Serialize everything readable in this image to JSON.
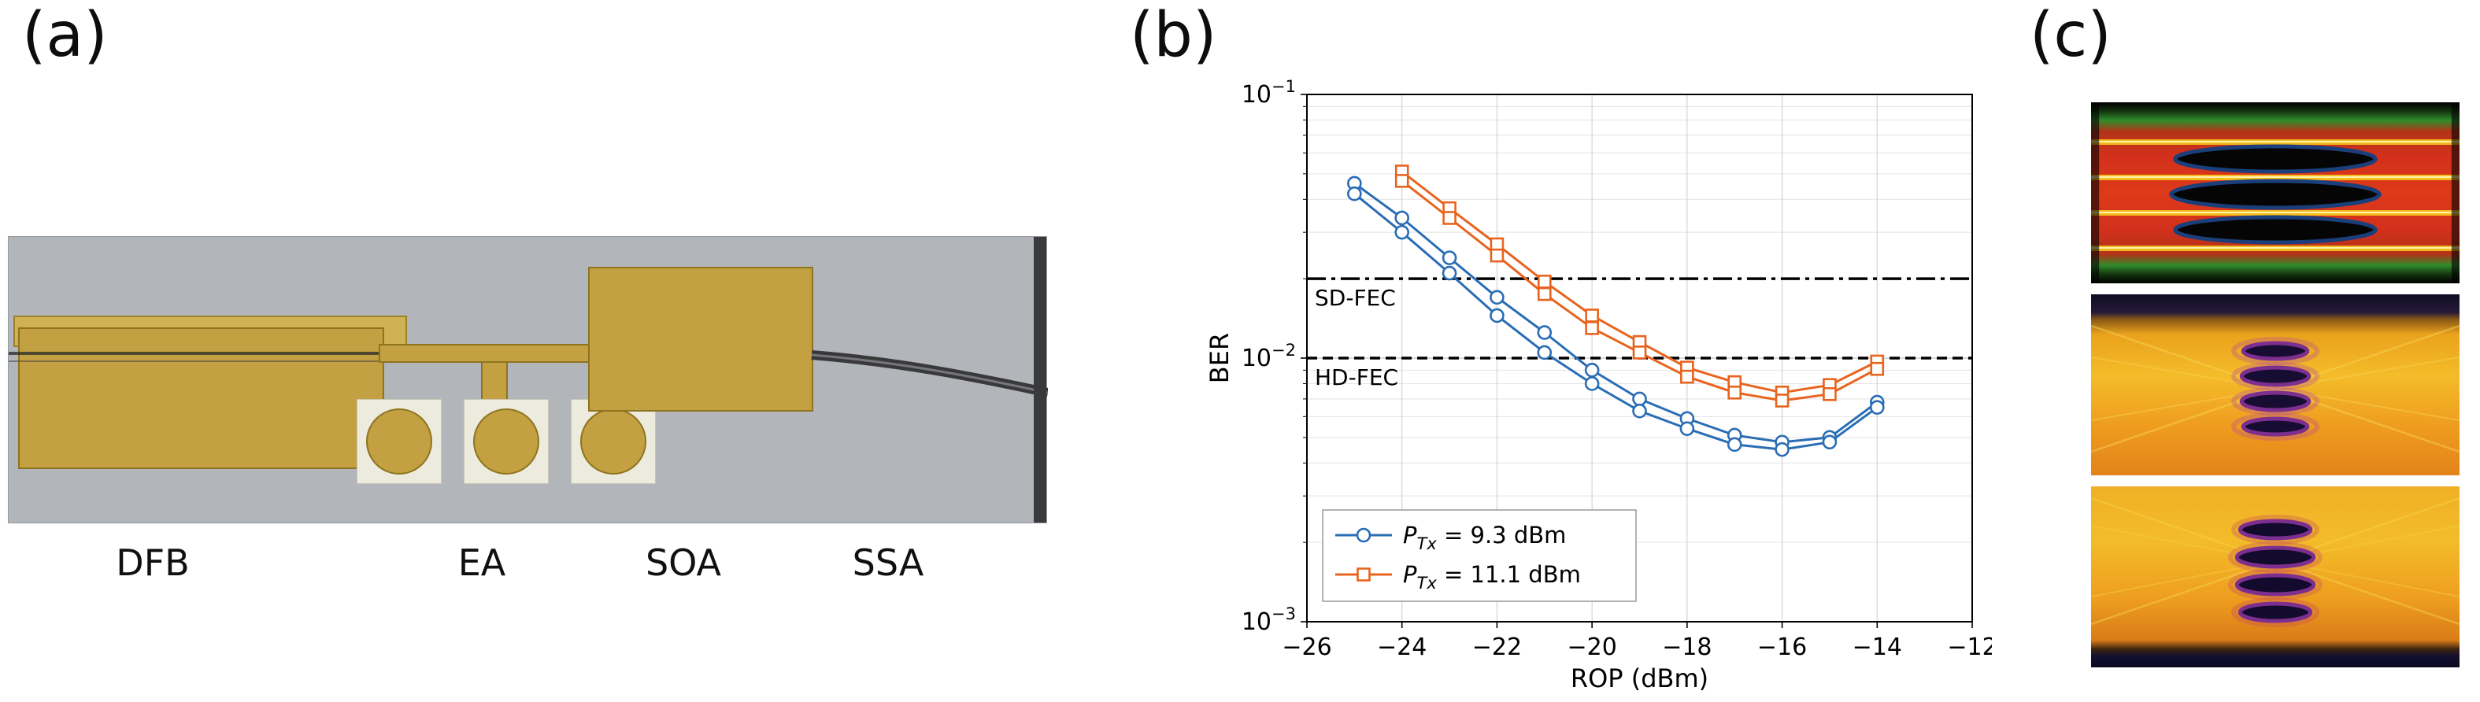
{
  "panel_a": {
    "label": "(a)",
    "component_labels": [
      "DFB",
      "EA",
      "SOA",
      "SSA"
    ]
  },
  "panel_b": {
    "label": "(b)"
  },
  "panel_c": {
    "label": "(c)",
    "images": [
      "eye-diagram-top",
      "eye-diagram-middle",
      "eye-diagram-bottom"
    ]
  },
  "chart_data": {
    "type": "line",
    "title": "",
    "xlabel": "ROP (dBm)",
    "ylabel": "BER",
    "xlim": [
      -26,
      -12
    ],
    "x_ticks": [
      -26,
      -24,
      -22,
      -20,
      -18,
      -16,
      -14,
      -12
    ],
    "yscale": "log",
    "ylim": [
      0.001,
      0.1
    ],
    "y_tick_exponents": [
      -1,
      -2,
      -3
    ],
    "grid": true,
    "legend_position": "lower-left",
    "thresholds": [
      {
        "label": "SD-FEC",
        "value": 0.02,
        "style": "dash-dot",
        "color": "#000000"
      },
      {
        "label": "HD-FEC",
        "value": 0.01,
        "style": "dashed",
        "color": "#000000"
      }
    ],
    "series": [
      {
        "label": {
          "p": "P",
          "sub": "Tx",
          "rest": " = 9.3 dBm"
        },
        "color": "#2a6db5",
        "marker": "circle",
        "lines": [
          [
            [
              -25,
              0.046
            ],
            [
              -24,
              0.034
            ],
            [
              -23,
              0.024
            ],
            [
              -22,
              0.017
            ],
            [
              -21,
              0.0125
            ],
            [
              -20,
              0.009
            ],
            [
              -19,
              0.007
            ],
            [
              -18,
              0.0059
            ],
            [
              -17,
              0.0051
            ],
            [
              -16,
              0.0048
            ],
            [
              -15,
              0.005
            ],
            [
              -14,
              0.0068
            ]
          ],
          [
            [
              -25,
              0.042
            ],
            [
              -24,
              0.03
            ],
            [
              -23,
              0.021
            ],
            [
              -22,
              0.0145
            ],
            [
              -21,
              0.0105
            ],
            [
              -20,
              0.008
            ],
            [
              -19,
              0.0063
            ],
            [
              -18,
              0.0054
            ],
            [
              -17,
              0.0047
            ],
            [
              -16,
              0.0045
            ],
            [
              -15,
              0.0048
            ],
            [
              -14,
              0.0065
            ]
          ]
        ]
      },
      {
        "label": {
          "p": "P",
          "sub": "Tx",
          "rest": " = 11.1 dBm"
        },
        "color": "#e8641e",
        "marker": "square",
        "lines": [
          [
            [
              -24,
              0.051
            ],
            [
              -23,
              0.037
            ],
            [
              -22,
              0.027
            ],
            [
              -21,
              0.0195
            ],
            [
              -20,
              0.0145
            ],
            [
              -19,
              0.0115
            ],
            [
              -18,
              0.0092
            ],
            [
              -17,
              0.0081
            ],
            [
              -16,
              0.0074
            ],
            [
              -15,
              0.0079
            ],
            [
              -14,
              0.0097
            ]
          ],
          [
            [
              -24,
              0.047
            ],
            [
              -23,
              0.034
            ],
            [
              -22,
              0.0245
            ],
            [
              -21,
              0.0175
            ],
            [
              -20,
              0.013
            ],
            [
              -19,
              0.0105
            ],
            [
              -18,
              0.0085
            ],
            [
              -17,
              0.0074
            ],
            [
              -16,
              0.0069
            ],
            [
              -15,
              0.0073
            ],
            [
              -14,
              0.0091
            ]
          ]
        ]
      }
    ]
  }
}
